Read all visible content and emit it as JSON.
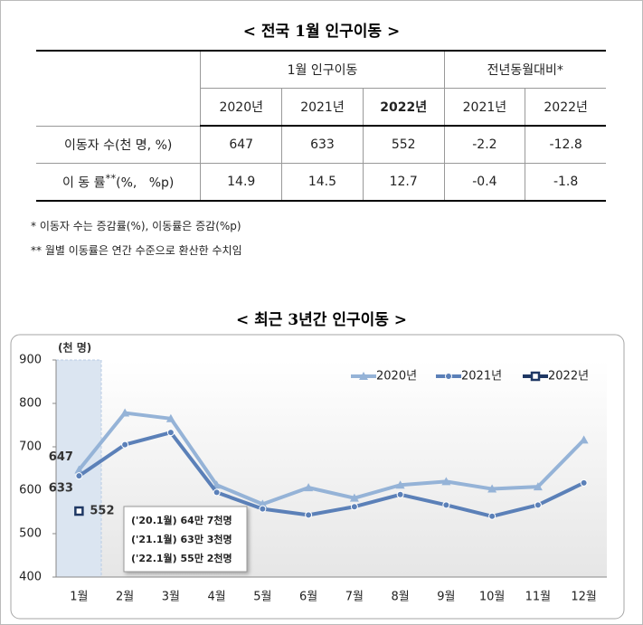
{
  "table_title": "< 전국 1월 인구이동 >",
  "table": {
    "group_headers": [
      "1월 인구이동",
      "전년동월대비*"
    ],
    "year_headers": [
      "2020년",
      "2021년",
      "2022년",
      "2021년",
      "2022년"
    ],
    "rows": [
      {
        "label": "이동자 수(천 명, %)",
        "cells": [
          647,
          633,
          552,
          -2.2,
          -12.8
        ]
      },
      {
        "label": {
          "text": "이 동 률",
          "sup": "**",
          "rest": "(%,   %p)"
        },
        "cells": [
          14.9,
          14.5,
          12.7,
          -0.4,
          -1.8
        ]
      }
    ]
  },
  "notes": [
    "* 이동자 수는 증감률(%), 이동률은 증감(%p)",
    "** 월별 이동률은 연간 수준으로 환산한 수치임"
  ],
  "chart_data": {
    "type": "line",
    "title": "< 최근 3년간 인구이동 >",
    "y_label": "(천 명)",
    "categories": [
      "1월",
      "2월",
      "3월",
      "4월",
      "5월",
      "6월",
      "7월",
      "8월",
      "9월",
      "10월",
      "11월",
      "12월"
    ],
    "series": [
      {
        "name": "2020년",
        "color": "#95b3d7",
        "marker": "triangle",
        "values": [
          647,
          778,
          765,
          612,
          568,
          606,
          582,
          612,
          620,
          603,
          608,
          716
        ]
      },
      {
        "name": "2021년",
        "color": "#5b80b8",
        "marker": "circle",
        "values": [
          633,
          705,
          733,
          595,
          557,
          543,
          562,
          590,
          566,
          540,
          566,
          617
        ]
      },
      {
        "name": "2022년",
        "color": "#1f3864",
        "marker": "square",
        "values": [
          552,
          null,
          null,
          null,
          null,
          null,
          null,
          null,
          null,
          null,
          null,
          null
        ]
      }
    ],
    "ylim": [
      400,
      900
    ],
    "yticks": [
      400,
      500,
      600,
      700,
      800,
      900
    ],
    "grid": false,
    "legend": "top-right",
    "annotations": [
      "('20.1월) 64만 7천명",
      "('21.1월) 63만 3천명",
      "('22.1월) 55만 2천명"
    ]
  }
}
